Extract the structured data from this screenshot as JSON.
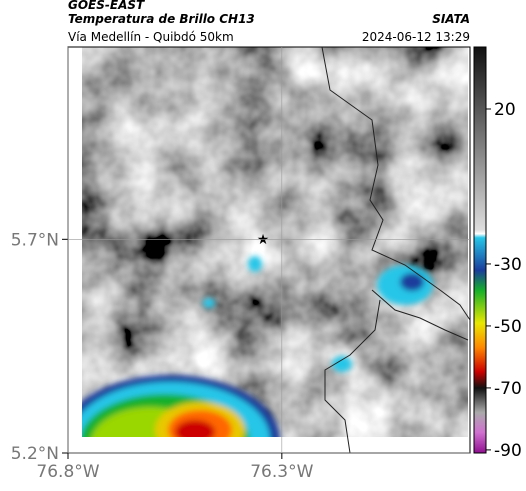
{
  "header": {
    "title": "GOES-EAST",
    "subtitle": "Temperatura de Brillo CH13",
    "source": "SIATA",
    "region": "Vía Medellín - Quibdó 50km",
    "timestamp": "2024-06-12 13:29"
  },
  "map": {
    "latlim": [
      5.2,
      6.15
    ],
    "lonlim": [
      -76.8,
      -75.86
    ],
    "lat_ticks": [
      {
        "value": 5.7,
        "label": "5.7°N"
      },
      {
        "value": 5.2,
        "label": "5.2°N"
      }
    ],
    "lon_ticks": [
      {
        "value": -76.8,
        "label": "76.8°W"
      },
      {
        "value": -76.3,
        "label": "76.3°W"
      }
    ],
    "grid": true
  },
  "colorbar": {
    "lim": [
      -91,
      40
    ],
    "ticks": [
      20,
      -30,
      -50,
      -70,
      -90
    ]
  }
}
